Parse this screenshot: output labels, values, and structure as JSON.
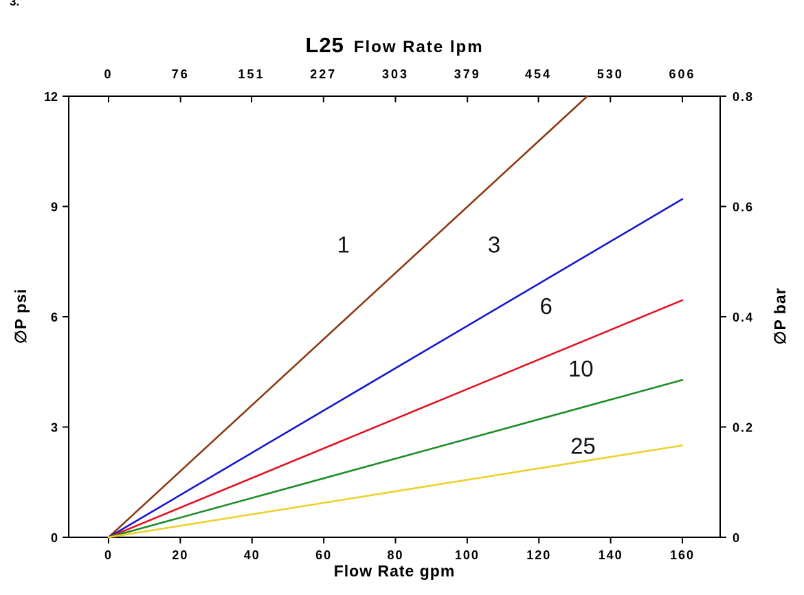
{
  "page": {
    "corner_note": "3."
  },
  "chart_data": {
    "type": "line",
    "title": {
      "model": "L25",
      "text": "Flow Rate lpm"
    },
    "axes": {
      "top": {
        "label": "Flow Rate lpm",
        "unit": "lpm",
        "values": [
          0,
          76,
          151,
          227,
          303,
          379,
          454,
          530,
          606
        ],
        "range": [
          0,
          606
        ]
      },
      "bottom": {
        "label": "Flow Rate gpm",
        "unit": "gpm",
        "values": [
          0,
          20,
          40,
          60,
          80,
          100,
          120,
          140,
          160
        ],
        "range": [
          0,
          160
        ]
      },
      "left": {
        "label": "∅P psi",
        "unit": "psi",
        "values": [
          0,
          3,
          6,
          9,
          12
        ],
        "range": [
          0,
          12
        ]
      },
      "right": {
        "label": "∅P bar",
        "unit": "bar",
        "values": [
          0,
          0.2,
          0.4,
          0.6,
          0.8
        ],
        "range": [
          0,
          0.8
        ]
      }
    },
    "grid": false,
    "series": [
      {
        "name": "1",
        "color": "#8a3a12",
        "points": [
          [
            0,
            0
          ],
          [
            133.5,
            12
          ]
        ],
        "label_at": [
          65.5,
          7.95
        ]
      },
      {
        "name": "3",
        "color": "#1616cf",
        "points": [
          [
            0,
            0
          ],
          [
            160,
            9.2
          ]
        ],
        "label_at": [
          107.5,
          7.95
        ]
      },
      {
        "name": "6",
        "color": "#e11422",
        "points": [
          [
            0,
            0
          ],
          [
            160,
            6.45
          ]
        ],
        "label_at": [
          122,
          6.28
        ]
      },
      {
        "name": "10",
        "color": "#1d8c28",
        "points": [
          [
            0,
            0
          ],
          [
            160,
            4.28
          ]
        ],
        "label_at": [
          131.7,
          4.58
        ]
      },
      {
        "name": "25",
        "color": "#ecd22b",
        "points": [
          [
            0,
            0
          ],
          [
            160,
            2.5
          ]
        ],
        "label_at": [
          132.3,
          2.48
        ]
      }
    ]
  }
}
